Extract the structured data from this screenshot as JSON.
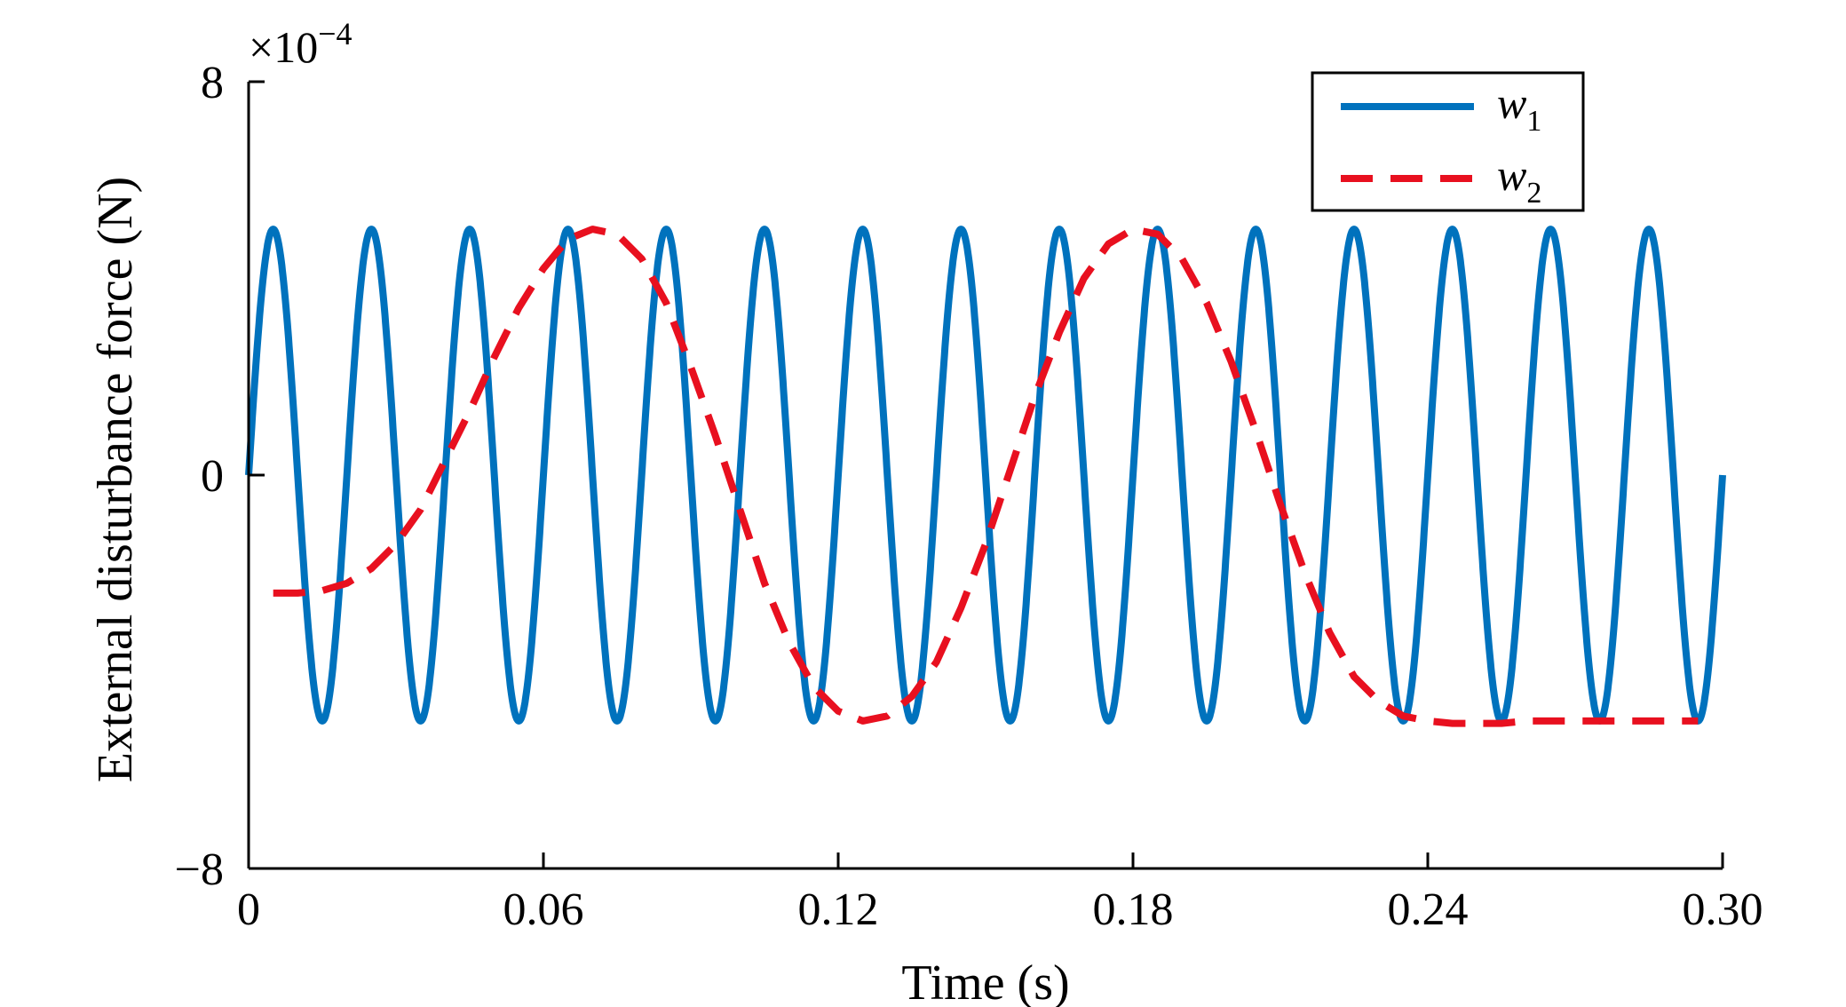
{
  "chart_data": {
    "type": "line",
    "xlabel": "Time (s)",
    "ylabel": "External disturbance force (N)",
    "y_exponent_label": "×10",
    "y_exponent_power": "−4",
    "xlim": [
      0,
      0.3
    ],
    "ylim": [
      -8,
      8
    ],
    "x_ticks": [
      0,
      0.06,
      0.12,
      0.18,
      0.24,
      0.3
    ],
    "x_tick_labels": [
      "0",
      "0.06",
      "0.12",
      "0.18",
      "0.24",
      "0.30"
    ],
    "y_ticks": [
      -8,
      0,
      8
    ],
    "y_tick_labels": [
      "−8",
      "0",
      "8"
    ],
    "grid": false,
    "legend_position": "top-right",
    "series": [
      {
        "name": "w",
        "name_subscript": "1",
        "color": "#0072BD",
        "style": "solid",
        "function": "sine",
        "amplitude": 5,
        "frequency_hz": 50,
        "phase": 0,
        "x_range": [
          0,
          0.3
        ]
      },
      {
        "name": "w",
        "name_subscript": "2",
        "color": "#E8101F",
        "style": "dashed",
        "x": [
          0.005,
          0.01,
          0.015,
          0.02,
          0.025,
          0.03,
          0.035,
          0.04,
          0.045,
          0.05,
          0.055,
          0.06,
          0.065,
          0.07,
          0.075,
          0.08,
          0.085,
          0.09,
          0.095,
          0.1,
          0.105,
          0.11,
          0.115,
          0.12,
          0.125,
          0.13,
          0.135,
          0.14,
          0.145,
          0.15,
          0.155,
          0.16,
          0.165,
          0.17,
          0.175,
          0.18,
          0.185,
          0.19,
          0.195,
          0.2,
          0.205,
          0.21,
          0.215,
          0.22,
          0.225,
          0.23,
          0.235,
          0.24,
          0.245,
          0.25,
          0.255,
          0.26,
          0.265,
          0.27,
          0.275,
          0.28,
          0.285,
          0.29,
          0.295
        ],
        "values": [
          -2.4,
          -2.4,
          -2.35,
          -2.2,
          -1.9,
          -1.4,
          -0.7,
          0.3,
          1.3,
          2.4,
          3.4,
          4.2,
          4.8,
          5.0,
          4.9,
          4.4,
          3.5,
          2.2,
          0.8,
          -0.7,
          -2.2,
          -3.4,
          -4.3,
          -4.8,
          -5.0,
          -4.9,
          -4.5,
          -3.8,
          -2.7,
          -1.4,
          0.1,
          1.6,
          2.9,
          4.0,
          4.7,
          5.0,
          4.9,
          4.4,
          3.5,
          2.3,
          0.9,
          -0.6,
          -2.0,
          -3.2,
          -4.1,
          -4.6,
          -4.9,
          -5.0,
          -5.05,
          -5.05,
          -5.05,
          -5.0,
          -5.0,
          -5.0,
          -5.0,
          -5.0,
          -5.0,
          -5.0,
          -5.0
        ]
      }
    ]
  }
}
